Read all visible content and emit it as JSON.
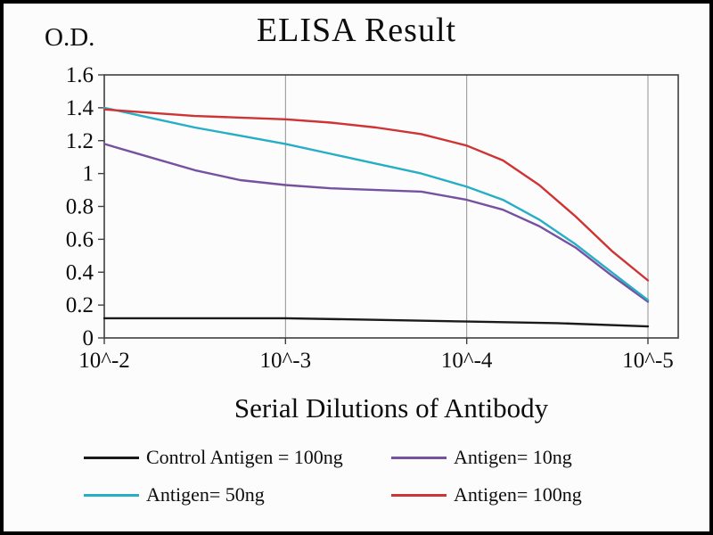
{
  "chart_data": {
    "type": "line",
    "title": "ELISA Result",
    "ylabel": "O.D.",
    "xlabel": "Serial Dilutions of Antibody",
    "x_tick_labels": [
      "10^-2",
      "10^-3",
      "10^-4",
      "10^-5"
    ],
    "y_tick_labels": [
      "0",
      "0.2",
      "0.4",
      "0.6",
      "0.8",
      "1",
      "1.2",
      "1.4",
      "1.6"
    ],
    "ylim": [
      0,
      1.6
    ],
    "grid": "vertical",
    "legend_position": "bottom",
    "colors": {
      "control": "#1a1a1a",
      "antigen10": "#76519f",
      "antigen50": "#25aec6",
      "antigen100": "#cf3333",
      "gridline": "#909090",
      "plot_border": "#3f3f3f"
    },
    "series": [
      {
        "name": "Control Antigen = 100ng",
        "color": "#1a1a1a",
        "x": [
          0,
          0.5,
          1,
          1.5,
          2,
          2.5,
          3
        ],
        "values": [
          0.12,
          0.12,
          0.12,
          0.11,
          0.1,
          0.09,
          0.07
        ]
      },
      {
        "name": "Antigen= 10ng",
        "color": "#76519f",
        "x": [
          0,
          0.25,
          0.5,
          0.75,
          1,
          1.25,
          1.5,
          1.75,
          2,
          2.2,
          2.4,
          2.6,
          2.8,
          3
        ],
        "values": [
          1.18,
          1.1,
          1.02,
          0.96,
          0.93,
          0.91,
          0.9,
          0.89,
          0.84,
          0.78,
          0.68,
          0.55,
          0.38,
          0.22
        ]
      },
      {
        "name": "Antigen= 50ng",
        "color": "#25aec6",
        "x": [
          0,
          0.25,
          0.5,
          0.75,
          1,
          1.25,
          1.5,
          1.75,
          2,
          2.2,
          2.4,
          2.6,
          2.8,
          3
        ],
        "values": [
          1.4,
          1.34,
          1.28,
          1.23,
          1.18,
          1.12,
          1.06,
          1.0,
          0.92,
          0.84,
          0.72,
          0.57,
          0.4,
          0.23
        ]
      },
      {
        "name": "Antigen= 100ng",
        "color": "#cf3333",
        "x": [
          0,
          0.25,
          0.5,
          0.75,
          1,
          1.25,
          1.5,
          1.75,
          2,
          2.2,
          2.4,
          2.6,
          2.8,
          3
        ],
        "values": [
          1.39,
          1.37,
          1.35,
          1.34,
          1.33,
          1.31,
          1.28,
          1.24,
          1.17,
          1.08,
          0.93,
          0.74,
          0.53,
          0.35
        ]
      }
    ]
  }
}
